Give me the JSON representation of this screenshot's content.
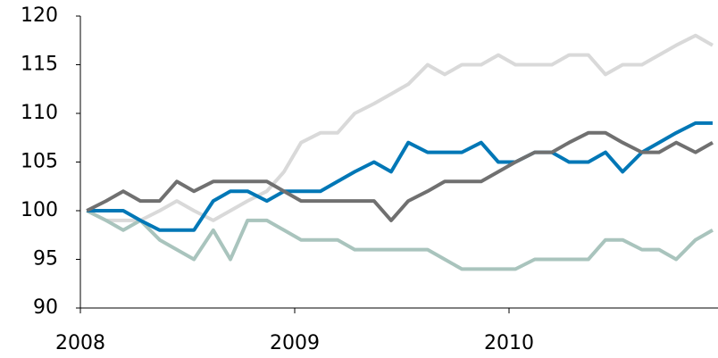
{
  "chart_data": {
    "type": "line",
    "x": [
      2008.03,
      2008.12,
      2008.2,
      2008.28,
      2008.37,
      2008.45,
      2008.53,
      2008.62,
      2008.7,
      2008.78,
      2008.87,
      2008.95,
      2009.03,
      2009.12,
      2009.2,
      2009.28,
      2009.37,
      2009.45,
      2009.53,
      2009.62,
      2009.7,
      2009.78,
      2009.87,
      2009.95,
      2010.03,
      2010.12,
      2010.2,
      2010.28,
      2010.37,
      2010.45,
      2010.53,
      2010.62,
      2010.7,
      2010.78,
      2010.87,
      2010.95
    ],
    "series": [
      {
        "color": "#d9d9d9",
        "values": [
          100,
          99,
          99,
          99,
          100,
          101,
          100,
          99,
          100,
          101,
          102,
          104,
          107,
          108,
          108,
          110,
          111,
          112,
          113,
          115,
          114,
          115,
          115,
          116,
          115,
          115,
          115,
          116,
          116,
          114,
          115,
          115,
          116,
          117,
          118,
          117
        ]
      },
      {
        "color": "#a9c4bd",
        "values": [
          100,
          99,
          98,
          99,
          97,
          96,
          95,
          98,
          95,
          99,
          99,
          98,
          97,
          97,
          97,
          96,
          96,
          96,
          96,
          96,
          95,
          94,
          94,
          94,
          94,
          95,
          95,
          95,
          95,
          97,
          97,
          96,
          96,
          95,
          97,
          98
        ]
      },
      {
        "color": "#0077b6",
        "values": [
          100,
          100,
          100,
          99,
          98,
          98,
          98,
          101,
          102,
          102,
          101,
          102,
          102,
          102,
          103,
          104,
          105,
          104,
          107,
          106,
          106,
          106,
          107,
          105,
          105,
          106,
          106,
          105,
          105,
          106,
          104,
          106,
          107,
          108,
          109,
          109
        ]
      },
      {
        "color": "#707070",
        "values": [
          100,
          101,
          102,
          101,
          101,
          103,
          102,
          103,
          103,
          103,
          103,
          102,
          101,
          101,
          101,
          101,
          101,
          99,
          101,
          102,
          103,
          103,
          103,
          104,
          105,
          106,
          106,
          107,
          108,
          108,
          107,
          106,
          106,
          107,
          106,
          107
        ]
      }
    ],
    "xlim": [
      2008,
      2010.975
    ],
    "xticks": [
      2008,
      2009,
      2010
    ],
    "ylim": [
      90,
      120
    ],
    "yticks": [
      90,
      95,
      100,
      105,
      110,
      115,
      120
    ]
  }
}
